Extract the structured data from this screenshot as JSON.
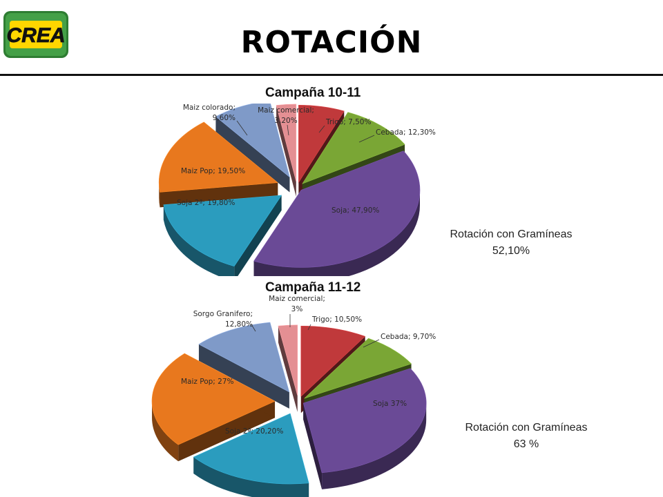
{
  "header": {
    "title": "ROTACIÓN",
    "logo_text": "CREA"
  },
  "colors": {
    "Trigo": "#c0393b",
    "Cebada": "#7aa635",
    "Soja": "#6a4a96",
    "Soja 2ª": "#2b9cbe",
    "Maiz Pop": "#e8781e",
    "Otros": "#7f9ac8",
    "Maiz comercial": "#e48f93"
  },
  "chart_data": [
    {
      "type": "pie",
      "title": "Campaña  10-11",
      "slices": [
        {
          "name": "Trigo",
          "value": 7.5,
          "label": "Trigo; 7,50%"
        },
        {
          "name": "Cebada",
          "value": 12.3,
          "label": "Cebada; 12,30%"
        },
        {
          "name": "Soja",
          "value": 47.9,
          "label": "Soja; 47,90%"
        },
        {
          "name": "Soja 2ª",
          "value": 19.8,
          "label": "Soja 2ª; 19,80%"
        },
        {
          "name": "Maiz Pop",
          "value": 19.5,
          "label": "Maiz Pop; 19,50%"
        },
        {
          "name": "Maiz colorado",
          "value": 9.6,
          "label": [
            "Maiz colorado;",
            "9,60%"
          ]
        },
        {
          "name": "Maiz comercial",
          "value": 3.2,
          "label": [
            "Maiz comercial;",
            "3,20%"
          ]
        }
      ],
      "summary": [
        "Rotación con Gramíneas",
        "52,10%"
      ]
    },
    {
      "type": "pie",
      "title": "Campaña  11-12",
      "slices": [
        {
          "name": "Trigo",
          "value": 10.5,
          "label": "Trigo; 10,50%"
        },
        {
          "name": "Cebada",
          "value": 9.7,
          "label": "Cebada; 9,70%"
        },
        {
          "name": "Soja",
          "value": 37,
          "label": "Soja  37%"
        },
        {
          "name": "Soja 2ª",
          "value": 20.2,
          "label": "Soja 2ª; 20,20%"
        },
        {
          "name": "Maiz Pop",
          "value": 27,
          "label": "Maiz Pop; 27%"
        },
        {
          "name": "Sorgo Granifero",
          "value": 12.8,
          "label": [
            "Sorgo Granifero;",
            "12,80%"
          ]
        },
        {
          "name": "Maiz comercial",
          "value": 3,
          "label": [
            "Maiz comercial;",
            "3%"
          ]
        }
      ],
      "summary": [
        "Rotación con Gramíneas",
        "63 %"
      ]
    }
  ]
}
